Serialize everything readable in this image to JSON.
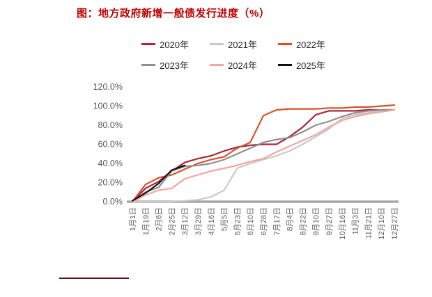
{
  "title": "图：地方政府新增一般债发行进度（%）",
  "colors": {
    "title_red": "#BE0000",
    "axis_gray": "#A6A6A6",
    "tick_text": "#595959",
    "footer_line": "#5e1016"
  },
  "chart_data": {
    "type": "line",
    "title": "地方政府新增一般债发行进度（%）",
    "xlabel": "",
    "ylabel": "",
    "ylim": [
      0,
      120
    ],
    "grid": false,
    "legend_position": "top",
    "baseline": {
      "value": 0,
      "color": "#A6A6A6"
    },
    "yticks": [
      "120.0%",
      "100.0%",
      "80.0%",
      "60.0%",
      "40.0%",
      "20.0%",
      "0.0%"
    ],
    "x": [
      "1月1日",
      "1月19日",
      "2月6日",
      "2月25日",
      "3月12日",
      "3月29日",
      "4月16日",
      "5月5日",
      "5月23日",
      "6月10日",
      "6月28日",
      "7月17日",
      "8月4日",
      "8月22日",
      "9月10日",
      "9月27日",
      "10月16日",
      "11月3日",
      "11月21日",
      "12月10日",
      "12月27日"
    ],
    "series": [
      {
        "name": "2020年",
        "color": "#A5283C",
        "values": [
          0,
          14,
          21,
          32,
          41,
          45,
          48,
          53,
          57,
          59,
          60,
          60,
          68,
          78,
          91,
          95,
          95,
          95,
          96,
          96,
          96
        ]
      },
      {
        "name": "2021年",
        "color": "#C9C9C9",
        "values": [
          0,
          0,
          0,
          0,
          1,
          2,
          5,
          12,
          35,
          40,
          44,
          48,
          53,
          60,
          68,
          76,
          87,
          91,
          93,
          95,
          96
        ]
      },
      {
        "name": "2022年",
        "color": "#D8502B",
        "values": [
          0,
          18,
          25,
          28,
          34,
          40,
          44,
          47,
          56,
          62,
          90,
          96,
          97,
          97,
          97,
          98,
          98,
          99,
          99,
          100,
          101
        ]
      },
      {
        "name": "2023年",
        "color": "#8F8F8F",
        "values": [
          0,
          10,
          15,
          32,
          37,
          38,
          40,
          44,
          50,
          56,
          62,
          65,
          67,
          73,
          80,
          84,
          89,
          93,
          95,
          96,
          96
        ]
      },
      {
        "name": "2024年",
        "color": "#F2A69E",
        "values": [
          0,
          7,
          12,
          14,
          24,
          28,
          32,
          35,
          38,
          42,
          45,
          52,
          58,
          64,
          70,
          78,
          85,
          89,
          92,
          94,
          96
        ]
      },
      {
        "name": "2025年",
        "color": "#111111",
        "values": [
          1,
          9,
          19,
          33,
          38,
          null,
          null,
          null,
          null,
          null,
          null,
          null,
          null,
          null,
          null,
          null,
          null,
          null,
          null,
          null,
          null
        ]
      }
    ]
  }
}
